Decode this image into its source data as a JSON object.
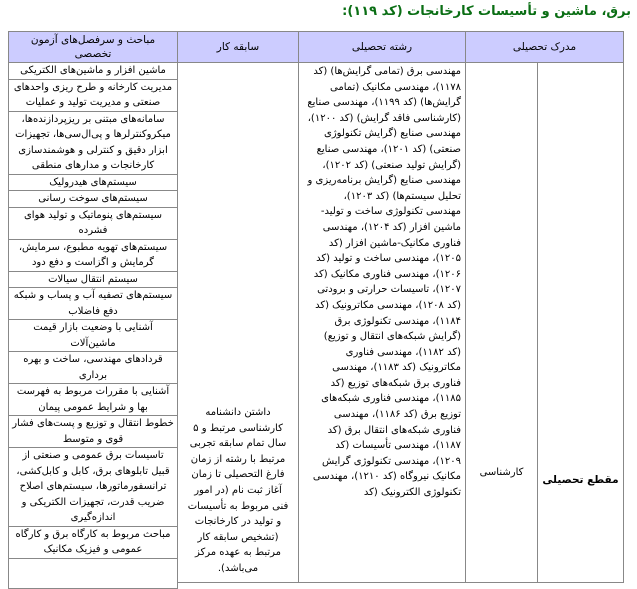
{
  "title": "برق، ماشین و تأسیسات کارخانجات (کد ۱۱۹):",
  "header": {
    "degree": "مدرک تحصیلی",
    "field": "رشته تحصیلی",
    "experience": "سابقه کار",
    "subjects": "مباحث و سرفصل‌های آزمون تخصصی"
  },
  "degree_level_label": "مقطع تحصیلی",
  "degree_value": "کارشناسی",
  "experience_text": "داشتن دانشنامه کارشناسی مرتبط و ۵ سال تمام سابقه تجربی مرتبط با رشته از زمان فارغ التحصیلی تا زمان آغاز ثبت نام (در امور فنی مربوط به تأسیسات و تولید در کارخانجات (تشخیص سابقه کار مرتبط به عهده مرکز می‌باشد).",
  "fields": "مهندسی برق (تمامی گرایش‌ها) (کد ۱۱۷۸)، مهندسی مکانیک (تمامی گرایش‌ها) (کد ۱۱۹۹)، مهندسی صنایع (کارشناسی فاقد گرایش) (کد ۱۲۰۰)، مهندسی صنایع (گرایش تکنولوژی صنعتی) (کد ۱۲۰۱)، مهندسی صنایع (گرایش تولید صنعتی) (کد ۱۲۰۲)، مهندسی صنایع (گرایش برنامه‌ریزی و تحلیل سیستم‌ها) (کد ۱۲۰۳)، مهندسی تکنولوژی ساخت و تولید-ماشین افزار (کد ۱۲۰۴)، مهندسی فناوری مکانیک-ماشین افزار (کد ۱۲۰۵)، مهندسی ساخت و تولید (کد ۱۲۰۶)، مهندسی فناوری مکانیک (کد ۱۲۰۷)، تاسیسات حرارتی و برودتی (کد ۱۲۰۸)، مهندسی مکاترونیک (کد ۱۱۸۴)، مهندسی تکنولوژی برق (گرایش شبکه‌های انتقال و توزیع) (کد ۱۱۸۲)، مهندسی فناوری مکاترونیک (کد ۱۱۸۳)، مهندسی فناوری برق شبکه‌های توزیع (کد ۱۱۸۵)، مهندسی فناوری شبکه‌های توزیع برق (کد ۱۱۸۶)، مهندسی فناوری شبکه‌های انتقال برق (کد ۱۱۸۷)، مهندسی تأسیسات (کد ۱۲۰۹)، مهندسی تکنولوژی گرایش مکانیک نیروگاه (کد ۱۲۱۰)، مهندسی تکنولوژی الکترونیک (کد",
  "subjects": [
    "ماشین افزار و ماشین‌های الکتریکی",
    "مدیریت کارخانه و طرح ریزی واحدهای صنعتی و مدیریت تولید و عملیات",
    "سامانه‌های مبتنی بر ریزپردازنده‌ها، میکروکنترلرها و پی‌ال‌سی‌ها، تجهیزات ابزار دقیق و کنترلی و هوشمندسازی کارخانجات و مدارهای منطقی",
    "سیستم‌های هیدرولیک",
    "سیستم‌های سوخت رسانی",
    "سیستم‌های پنوماتیک و تولید هوای فشرده",
    "سیستم‌های تهویه مطبوع، سرمایش، گرمایش و اگزاست و دفع دود",
    "سیستم انتقال سیالات",
    "سیستم‌های تصفیه آب و پساب و شبکه دفع فاضلاب",
    "آشنایی با وضعیت بازار قیمت ماشین‌آلات",
    "قردادهای مهندسی، ساخت و بهره برداری",
    "آشنایی با مقررات مربوط به فهرست بها و شرایط عمومی پیمان",
    "خطوط انتقال و توزیع و پست‌های فشار قوی و متوسط",
    "تاسیسات برق عمومی و صنعتی از قبیل تابلوهای برق، کابل و کابل‌کشی، ترانسفورماتورها، سیستم‌های اصلاح ضریب قدرت، تجهیزات الکتریکی و اندازه‌گیری",
    "مباحث مربوط به کارگاه برق و کارگاه عمومی و فیزیک مکانیک"
  ]
}
